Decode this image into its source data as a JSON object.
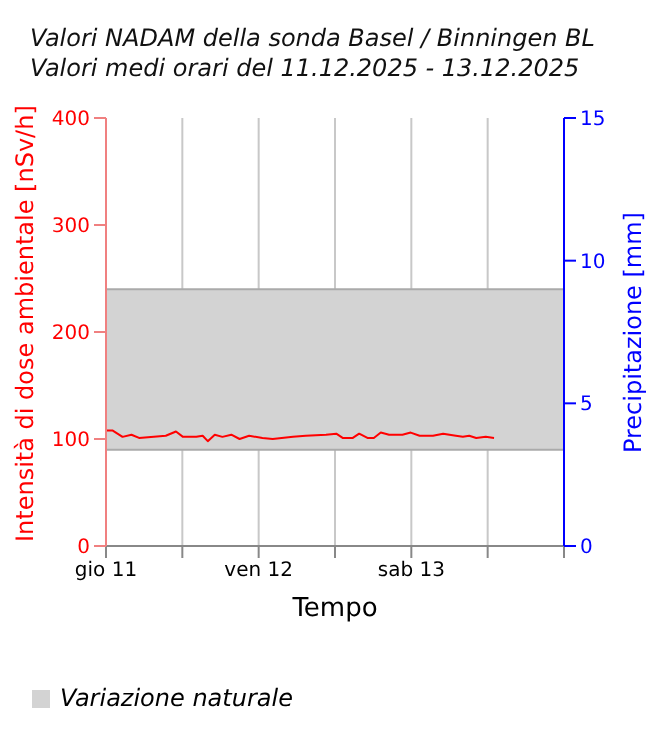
{
  "chart_data": {
    "type": "line",
    "title": "Valori NADAM della sonda Basel / Binningen BL",
    "subtitle": "Valori medi orari del 11.12.2025 - 13.12.2025",
    "xlabel": "Tempo",
    "ylabel": "Intensità di dose ambientale [nSv/h]",
    "y2label": "Precipitazione [mm]",
    "xlim": [
      "2025-12-11T00:00",
      "2025-12-14T00:00"
    ],
    "xticks": [
      {
        "value": "2025-12-11T00:00",
        "label": "gio 11"
      },
      {
        "value": "2025-12-11T12:00",
        "label": null
      },
      {
        "value": "2025-12-12T00:00",
        "label": "ven 12"
      },
      {
        "value": "2025-12-12T12:00",
        "label": null
      },
      {
        "value": "2025-12-13T00:00",
        "label": "sab 13"
      },
      {
        "value": "2025-12-13T12:00",
        "label": null
      },
      {
        "value": "2025-12-14T00:00",
        "label": null
      }
    ],
    "ylim": [
      0,
      400
    ],
    "yticks": [
      0,
      100,
      200,
      300,
      400
    ],
    "y2lim": [
      0,
      15
    ],
    "y2ticks": [
      0,
      5,
      10,
      15
    ],
    "grid": "x",
    "legend": "bottom left",
    "marker": "none",
    "line_style": "solid",
    "bands": [
      {
        "axis": "y",
        "from": 90,
        "to": 240,
        "label": "Variazione naturale",
        "color": "#d3d3d3"
      }
    ],
    "series": [
      {
        "color": "#ff0000",
        "x": [
          "2025-12-11T00:00",
          "2025-12-11T01:00",
          "2025-12-11T02:36",
          "2025-12-11T04:00",
          "2025-12-11T05:12",
          "2025-12-11T09:24",
          "2025-12-11T11:00",
          "2025-12-11T12:06",
          "2025-12-11T14:12",
          "2025-12-11T15:12",
          "2025-12-11T16:00",
          "2025-12-11T17:06",
          "2025-12-11T18:18",
          "2025-12-11T19:42",
          "2025-12-11T21:00",
          "2025-12-11T22:30",
          "2025-12-12T00:36",
          "2025-12-12T02:12",
          "2025-12-12T05:24",
          "2025-12-12T07:24",
          "2025-12-12T10:36",
          "2025-12-12T12:12",
          "2025-12-12T13:12",
          "2025-12-12T14:48",
          "2025-12-12T15:48",
          "2025-12-12T17:06",
          "2025-12-12T18:06",
          "2025-12-12T19:12",
          "2025-12-12T20:30",
          "2025-12-12T22:36",
          "2025-12-12T23:54",
          "2025-12-13T01:18",
          "2025-12-13T03:24",
          "2025-12-13T05:00",
          "2025-12-13T07:00",
          "2025-12-13T08:06",
          "2025-12-13T09:06",
          "2025-12-13T10:12",
          "2025-12-13T11:42",
          "2025-12-13T13:00"
        ],
        "values": [
          108,
          108,
          102,
          104,
          101,
          103,
          107,
          102,
          102,
          103,
          98,
          104,
          102,
          104,
          100,
          103,
          101,
          100,
          102,
          103,
          104,
          105,
          101,
          101,
          105,
          101,
          101,
          106,
          104,
          104,
          106,
          103,
          103,
          105,
          103,
          102,
          103,
          101,
          102,
          101
        ]
      }
    ]
  }
}
